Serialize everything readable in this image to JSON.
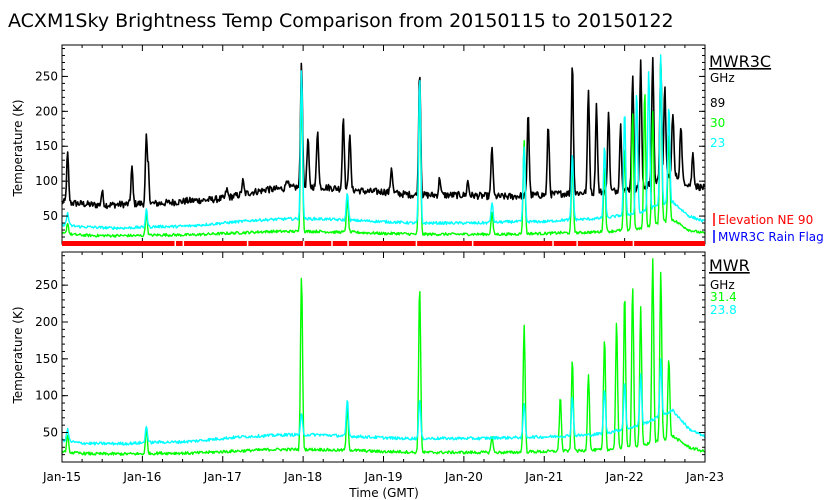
{
  "title": "ACXM1Sky Brightness Temp Comparison from 20150115 to 20150122",
  "colors": {
    "c89": "#000000",
    "c30": "#00ff00",
    "c23": "#00ffff",
    "elev": "#ff0000",
    "rain": "#0000ff"
  },
  "chart_data": [
    {
      "type": "line",
      "name": "MWR3C",
      "legend_title": "MWR3C",
      "legend_unit": "GHz",
      "ylabel": "Temperature (K)",
      "ylim": [
        10,
        295
      ],
      "yticks": [
        50,
        100,
        150,
        200,
        250
      ],
      "xlim": [
        0,
        8
      ],
      "series": [
        {
          "name": "89",
          "color_key": "c89",
          "baseline": [
            70,
            68,
            66,
            66,
            67,
            68,
            68,
            70,
            72,
            73,
            75,
            80,
            85,
            88,
            90,
            92,
            92,
            90,
            88,
            85,
            85,
            82,
            80,
            80,
            80,
            80,
            79,
            78,
            78,
            80,
            80,
            82,
            83,
            84,
            85,
            88,
            90,
            100,
            110,
            95,
            90
          ],
          "spikes": [
            [
              0.07,
              140
            ],
            [
              0.5,
              85
            ],
            [
              0.87,
              120
            ],
            [
              1.05,
              165
            ],
            [
              1.07,
              130
            ],
            [
              2.05,
              88
            ],
            [
              2.25,
              100
            ],
            [
              2.55,
              90
            ],
            [
              2.8,
              105
            ],
            [
              2.98,
              270
            ],
            [
              3.06,
              160
            ],
            [
              3.18,
              175
            ],
            [
              3.5,
              195
            ],
            [
              3.58,
              170
            ],
            [
              4.1,
              120
            ],
            [
              4.45,
              260
            ],
            [
              4.7,
              105
            ],
            [
              5.05,
              100
            ],
            [
              5.35,
              150
            ],
            [
              5.8,
              200
            ],
            [
              6.05,
              180
            ],
            [
              6.35,
              270
            ],
            [
              6.55,
              230
            ],
            [
              6.65,
              210
            ],
            [
              6.8,
              200
            ],
            [
              6.95,
              180
            ],
            [
              7.1,
              250
            ],
            [
              7.2,
              270
            ],
            [
              7.35,
              275
            ],
            [
              7.45,
              270
            ],
            [
              7.5,
              240
            ],
            [
              7.6,
              200
            ],
            [
              7.7,
              180
            ],
            [
              7.85,
              140
            ]
          ]
        },
        {
          "name": "30",
          "color_key": "c30",
          "baseline": [
            25,
            23,
            22,
            22,
            22,
            22,
            23,
            23,
            23,
            24,
            25,
            26,
            27,
            28,
            28,
            28,
            28,
            27,
            27,
            26,
            25,
            25,
            24,
            24,
            24,
            24,
            24,
            24,
            24,
            25,
            25,
            26,
            26,
            27,
            28,
            30,
            32,
            40,
            45,
            30,
            25
          ],
          "spikes": [
            [
              0.07,
              40
            ],
            [
              1.05,
              55
            ],
            [
              2.98,
              250
            ],
            [
              3.55,
              75
            ],
            [
              4.45,
              240
            ],
            [
              5.35,
              55
            ],
            [
              5.75,
              160
            ],
            [
              6.35,
              130
            ],
            [
              6.75,
              120
            ],
            [
              7.0,
              150
            ],
            [
              7.1,
              200
            ],
            [
              7.25,
              230
            ],
            [
              7.35,
              200
            ],
            [
              7.45,
              280
            ],
            [
              7.55,
              170
            ]
          ]
        },
        {
          "name": "23",
          "color_key": "c23",
          "baseline": [
            38,
            35,
            34,
            33,
            33,
            34,
            35,
            35,
            36,
            38,
            40,
            42,
            44,
            45,
            46,
            46,
            46,
            45,
            44,
            43,
            42,
            41,
            40,
            40,
            40,
            40,
            40,
            41,
            42,
            42,
            42,
            44,
            45,
            46,
            48,
            52,
            55,
            65,
            70,
            50,
            42
          ],
          "spikes": [
            [
              0.07,
              55
            ],
            [
              1.05,
              60
            ],
            [
              2.98,
              260
            ],
            [
              3.55,
              85
            ],
            [
              4.45,
              250
            ],
            [
              5.35,
              70
            ],
            [
              5.75,
              150
            ],
            [
              6.35,
              140
            ],
            [
              6.75,
              150
            ],
            [
              7.0,
              200
            ],
            [
              7.15,
              230
            ],
            [
              7.3,
              260
            ],
            [
              7.45,
              280
            ],
            [
              7.55,
              210
            ]
          ]
        }
      ],
      "flags": [
        {
          "label": "Elevation NE 90",
          "color_key": "elev"
        },
        {
          "label": "MWR3C Rain Flag",
          "color_key": "rain"
        }
      ]
    },
    {
      "type": "line",
      "name": "MWR",
      "legend_title": "MWR",
      "legend_unit": "GHz",
      "ylabel": "Temperature (K)",
      "xlabel": "Time (GMT)",
      "ylim": [
        10,
        295
      ],
      "yticks": [
        50,
        100,
        150,
        200,
        250
      ],
      "xlim": [
        0,
        8
      ],
      "xticks": [
        "Jan-15",
        "Jan-16",
        "Jan-17",
        "Jan-18",
        "Jan-19",
        "Jan-20",
        "Jan-21",
        "Jan-22",
        "Jan-23"
      ],
      "series": [
        {
          "name": "31.4",
          "color_key": "c30",
          "baseline": [
            24,
            22,
            21,
            21,
            21,
            21,
            22,
            22,
            22,
            23,
            24,
            25,
            26,
            27,
            27,
            27,
            27,
            26,
            26,
            25,
            24,
            24,
            23,
            23,
            23,
            23,
            23,
            23,
            23,
            24,
            24,
            25,
            25,
            26,
            27,
            30,
            32,
            38,
            45,
            30,
            24
          ],
          "spikes": [
            [
              0.07,
              45
            ],
            [
              1.05,
              55
            ],
            [
              2.98,
              265
            ],
            [
              3.55,
              85
            ],
            [
              4.45,
              250
            ],
            [
              5.35,
              45
            ],
            [
              5.75,
              195
            ],
            [
              6.2,
              100
            ],
            [
              6.35,
              150
            ],
            [
              6.55,
              130
            ],
            [
              6.75,
              180
            ],
            [
              6.9,
              200
            ],
            [
              7.0,
              240
            ],
            [
              7.1,
              250
            ],
            [
              7.2,
              220
            ],
            [
              7.35,
              285
            ],
            [
              7.45,
              270
            ],
            [
              7.55,
              150
            ]
          ]
        },
        {
          "name": "23.8",
          "color_key": "c23",
          "baseline": [
            40,
            36,
            35,
            35,
            35,
            36,
            37,
            37,
            38,
            40,
            42,
            44,
            45,
            46,
            47,
            47,
            47,
            46,
            45,
            44,
            43,
            42,
            42,
            42,
            42,
            42,
            42,
            43,
            43,
            44,
            44,
            45,
            46,
            47,
            50,
            55,
            60,
            70,
            80,
            55,
            44
          ],
          "spikes": [
            [
              0.07,
              55
            ],
            [
              1.05,
              60
            ],
            [
              2.98,
              75
            ],
            [
              3.55,
              95
            ],
            [
              4.45,
              95
            ],
            [
              5.75,
              90
            ],
            [
              6.35,
              100
            ],
            [
              6.75,
              110
            ],
            [
              7.0,
              120
            ],
            [
              7.2,
              130
            ],
            [
              7.45,
              150
            ]
          ]
        }
      ]
    }
  ]
}
